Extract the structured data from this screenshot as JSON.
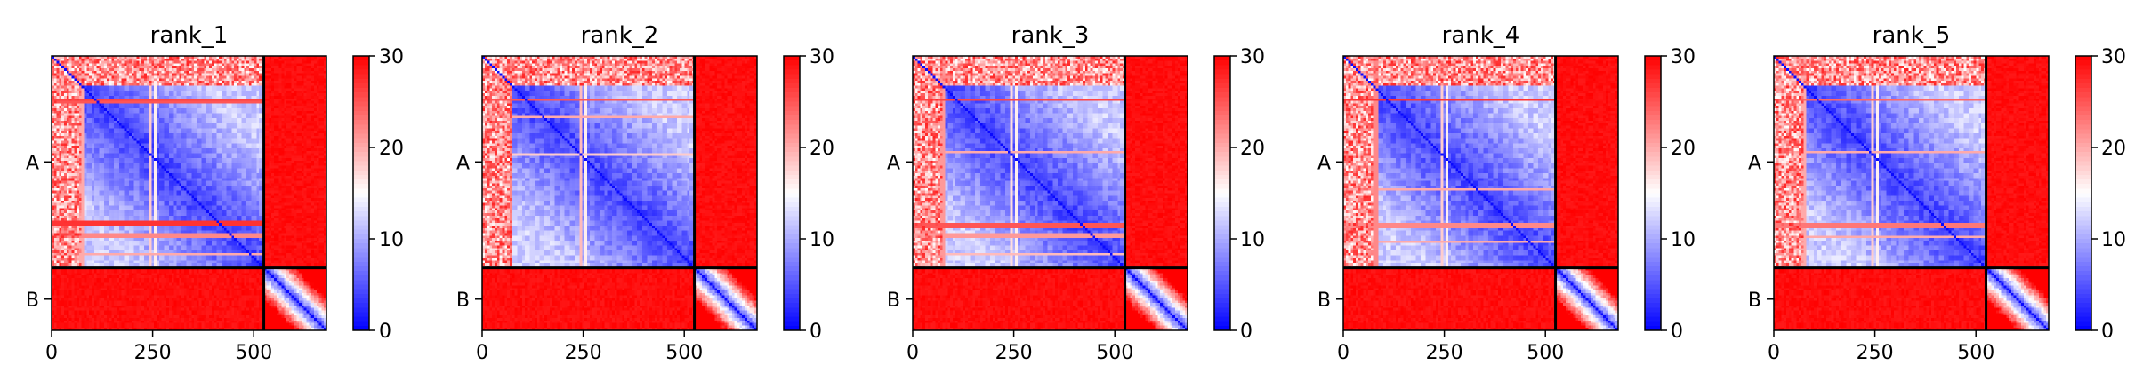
{
  "chart_data": [
    {
      "type": "heatmap",
      "title": "rank_1",
      "xlabel": "",
      "ylabel": "",
      "chain_labels": [
        "A",
        "B"
      ],
      "chain_boundary": 525,
      "xlim": [
        0,
        680
      ],
      "xticks": [
        0,
        250,
        500
      ],
      "colorbar": {
        "ticks": [
          0,
          10,
          20,
          30
        ],
        "range": [
          0,
          30
        ],
        "colormap": "bwr"
      },
      "line_rows": [
        {
          "at": 110,
          "value": 26
        },
        {
          "at": 115,
          "value": 25
        },
        {
          "at": 415,
          "value": 27
        },
        {
          "at": 445,
          "value": 22
        },
        {
          "at": 490,
          "value": 20
        }
      ],
      "line_cols": [
        {
          "at": 75,
          "value": 20
        },
        {
          "at": 245,
          "value": 18
        },
        {
          "at": 255,
          "value": 16
        }
      ]
    },
    {
      "type": "heatmap",
      "title": "rank_2",
      "xlabel": "",
      "ylabel": "",
      "chain_labels": [
        "A",
        "B"
      ],
      "chain_boundary": 525,
      "xlim": [
        0,
        680
      ],
      "xticks": [
        0,
        250,
        500
      ],
      "colorbar": {
        "ticks": [
          0,
          10,
          20,
          30
        ],
        "range": [
          0,
          30
        ],
        "colormap": "bwr"
      },
      "line_rows": [
        {
          "at": 110,
          "value": 25
        },
        {
          "at": 150,
          "value": 20
        },
        {
          "at": 245,
          "value": 18
        }
      ],
      "line_cols": [
        {
          "at": 70,
          "value": 22
        },
        {
          "at": 245,
          "value": 19
        },
        {
          "at": 255,
          "value": 16
        }
      ]
    },
    {
      "type": "heatmap",
      "title": "rank_3",
      "xlabel": "",
      "ylabel": "",
      "chain_labels": [
        "A",
        "B"
      ],
      "chain_boundary": 525,
      "xlim": [
        0,
        680
      ],
      "xticks": [
        0,
        250,
        500
      ],
      "colorbar": {
        "ticks": [
          0,
          10,
          20,
          30
        ],
        "range": [
          0,
          30
        ],
        "colormap": "bwr"
      },
      "line_rows": [
        {
          "at": 110,
          "value": 26
        },
        {
          "at": 240,
          "value": 20
        },
        {
          "at": 420,
          "value": 25
        },
        {
          "at": 445,
          "value": 21
        },
        {
          "at": 490,
          "value": 19
        }
      ],
      "line_cols": [
        {
          "at": 75,
          "value": 21
        },
        {
          "at": 245,
          "value": 17
        },
        {
          "at": 255,
          "value": 16
        }
      ]
    },
    {
      "type": "heatmap",
      "title": "rank_4",
      "xlabel": "",
      "ylabel": "",
      "chain_labels": [
        "A",
        "B"
      ],
      "chain_boundary": 525,
      "xlim": [
        0,
        680
      ],
      "xticks": [
        0,
        250,
        500
      ],
      "colorbar": {
        "ticks": [
          0,
          10,
          20,
          30
        ],
        "range": [
          0,
          30
        ],
        "colormap": "bwr"
      },
      "line_rows": [
        {
          "at": 110,
          "value": 27
        },
        {
          "at": 330,
          "value": 20
        },
        {
          "at": 420,
          "value": 22
        },
        {
          "at": 460,
          "value": 20
        }
      ],
      "line_cols": [
        {
          "at": 80,
          "value": 22
        },
        {
          "at": 245,
          "value": 18
        },
        {
          "at": 255,
          "value": 16
        }
      ]
    },
    {
      "type": "heatmap",
      "title": "rank_5",
      "xlabel": "",
      "ylabel": "",
      "chain_labels": [
        "A",
        "B"
      ],
      "chain_boundary": 525,
      "xlim": [
        0,
        680
      ],
      "xticks": [
        0,
        250,
        500
      ],
      "colorbar": {
        "ticks": [
          0,
          10,
          20,
          30
        ],
        "range": [
          0,
          30
        ],
        "colormap": "bwr"
      },
      "line_rows": [
        {
          "at": 110,
          "value": 24
        },
        {
          "at": 240,
          "value": 20
        },
        {
          "at": 420,
          "value": 23
        },
        {
          "at": 450,
          "value": 20
        }
      ],
      "line_cols": [
        {
          "at": 75,
          "value": 20
        },
        {
          "at": 245,
          "value": 18
        },
        {
          "at": 255,
          "value": 16
        }
      ]
    }
  ]
}
